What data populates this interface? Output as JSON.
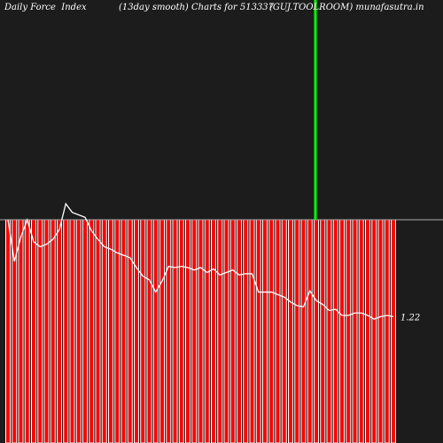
{
  "header": {
    "left": "Daily Force  Index",
    "middle": "(13day smooth) Charts for 513337",
    "right": "(GUJ.TOOLROOM) munafasutra.in"
  },
  "colors": {
    "background": "#1c1c1c",
    "bar_fill": "#ff0000",
    "bar_outline": "#ffffff",
    "line": "#ffffff",
    "zero_line": "#aaaaaa",
    "marker": "#00ff00",
    "text": "#ffffff"
  },
  "chart_data": {
    "type": "bar",
    "title": "",
    "xlabel": "",
    "ylabel": "",
    "ylim": [
      -1.82,
      0.0
    ],
    "last_value_label": "1.22",
    "bar_count": 61,
    "bars": [
      {
        "top": 0.0,
        "bottom": -1.82
      }
    ],
    "line_series": {
      "name": "",
      "values": [
        0.0,
        -0.34,
        -0.14,
        0.0,
        -0.18,
        -0.22,
        -0.2,
        -0.16,
        -0.08,
        0.13,
        0.06,
        0.04,
        0.02,
        -0.09,
        -0.16,
        -0.22,
        -0.24,
        -0.27,
        -0.29,
        -0.31,
        -0.39,
        -0.46,
        -0.49,
        -0.59,
        -0.5,
        -0.38,
        -0.39,
        -0.38,
        -0.39,
        -0.41,
        -0.39,
        -0.43,
        -0.4,
        -0.45,
        -0.43,
        -0.41,
        -0.45,
        -0.44,
        -0.44,
        -0.59,
        -0.59,
        -0.59,
        -0.61,
        -0.63,
        -0.67,
        -0.7,
        -0.71,
        -0.58,
        -0.66,
        -0.69,
        -0.74,
        -0.73,
        -0.78,
        -0.78,
        -0.76,
        -0.76,
        -0.78,
        -0.81,
        -0.79,
        -0.78,
        -0.79
      ]
    },
    "marker_index": 48
  }
}
